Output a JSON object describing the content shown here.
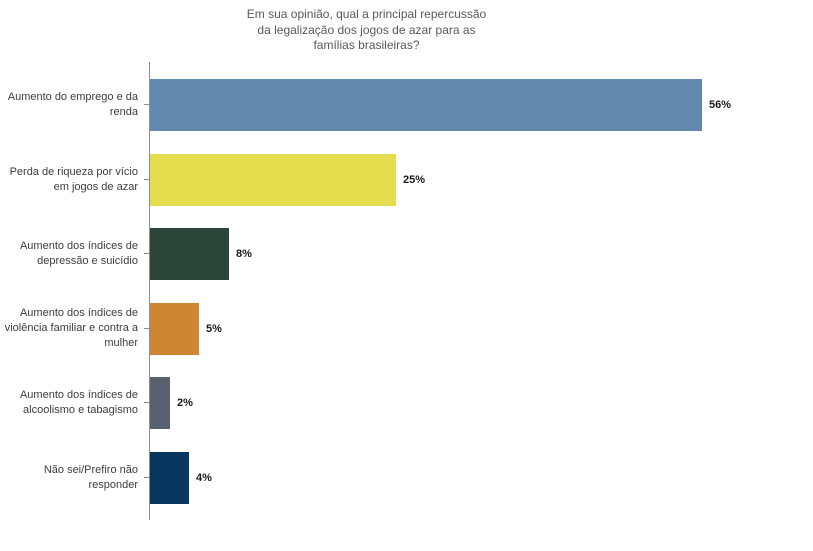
{
  "title": {
    "lines": [
      "Em sua opinião, qual a principal repercussão",
      "da legalização dos jogos de azar para as",
      "famílias brasileiras?"
    ]
  },
  "chart_data": {
    "type": "bar",
    "orientation": "horizontal",
    "title": "Em sua opinião, qual a principal repercussão da legalização dos jogos de azar para as famílias brasileiras?",
    "categories": [
      "Aumento do emprego e da renda",
      "Perda de riqueza por vício em jogos de azar",
      "Aumento dos índices de depressão e suicídio",
      "Aumento dos índices de violência familiar e contra a mulher",
      "Aumento dos índices de alcoolismo e tabagismo",
      "Não sei/Prefiro não responder"
    ],
    "values": [
      56,
      25,
      8,
      5,
      2,
      4
    ],
    "value_labels": [
      "56%",
      "25%",
      "8%",
      "5%",
      "2%",
      "4%"
    ],
    "bar_colors": [
      "#6489af",
      "#e6dd4e",
      "#2b4739",
      "#ce8634",
      "#596070",
      "#07375f"
    ],
    "xlabel": "",
    "ylabel": "",
    "xlim": [
      0,
      66
    ],
    "grid": false,
    "legend": "none",
    "axis_color": "#8c8c8c",
    "title_color": "#595959",
    "label_color": "#3d3d3d"
  }
}
